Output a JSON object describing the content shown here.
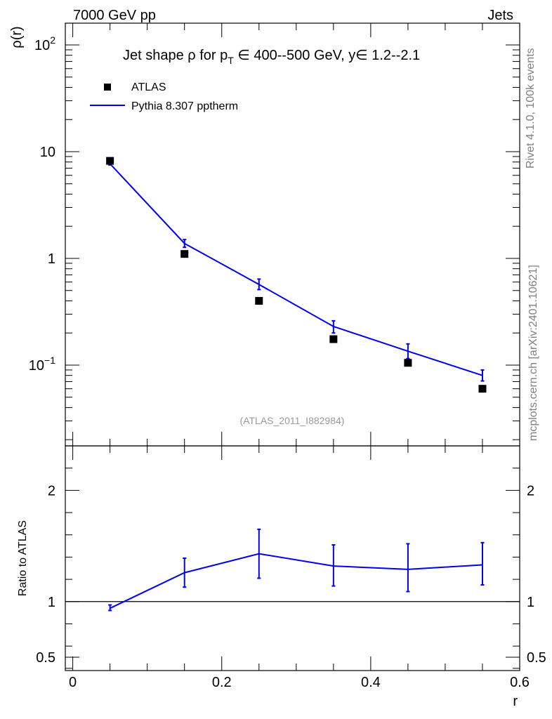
{
  "header": {
    "left": "7000 GeV pp",
    "right": "Jets"
  },
  "side_labels": {
    "rivet": "Rivet 4.1.0,  100k events",
    "mcplots": "mcplots.cern.ch [arXiv:2401.10621]"
  },
  "reference": "(ATLAS_2011_I882984)",
  "colors": {
    "mc": "#0000ee",
    "data": "#000000"
  },
  "chart_data": [
    {
      "type": "scatter",
      "panel": "main",
      "title_parts": {
        "pre": "Jet shape ",
        "rho": "ρ",
        "mid": " for p",
        "sub": "T",
        "post": " ∈ 400--500 GeV, y∈ 1.2--2.1"
      },
      "xlabel": "r",
      "ylabel": "ρ(r)",
      "yscale": "log",
      "xlim": [
        -0.01,
        0.6
      ],
      "ylim": [
        0.0175,
        160
      ],
      "yticks": [
        {
          "v": 100,
          "base": "10",
          "exp": "2"
        },
        {
          "v": 10,
          "base": "10",
          "exp": ""
        },
        {
          "v": 1,
          "base": "1",
          "exp": ""
        },
        {
          "v": 0.1,
          "base": "10",
          "exp": "−1"
        }
      ],
      "legend": {
        "data": "ATLAS",
        "mc": "Pythia 8.307 pptherm",
        "position": "top-left"
      },
      "series": [
        {
          "name": "ATLAS",
          "x": [
            0.05,
            0.15,
            0.25,
            0.35,
            0.45,
            0.55
          ],
          "y": [
            8.2,
            1.1,
            0.4,
            0.175,
            0.105,
            0.06
          ]
        },
        {
          "name": "Pythia 8.307 pptherm",
          "x": [
            0.05,
            0.15,
            0.25,
            0.35,
            0.45,
            0.55
          ],
          "y": [
            7.7,
            1.38,
            0.57,
            0.23,
            0.135,
            0.08
          ],
          "ylo": [
            7.5,
            1.27,
            0.51,
            0.2,
            0.115,
            0.071
          ],
          "yhi": [
            7.9,
            1.5,
            0.64,
            0.26,
            0.158,
            0.09
          ]
        }
      ]
    },
    {
      "type": "line",
      "panel": "ratio",
      "xlabel": "r",
      "ylabel": "Ratio to ATLAS",
      "ylim": [
        0.38,
        2.4
      ],
      "xticks": [
        {
          "v": 0,
          "label": "0"
        },
        {
          "v": 0.2,
          "label": "0.2"
        },
        {
          "v": 0.4,
          "label": "0.4"
        },
        {
          "v": 0.6,
          "label": "0.6"
        }
      ],
      "yticks_left": [
        {
          "v": 2,
          "label": "2"
        },
        {
          "v": 1,
          "label": "1"
        },
        {
          "v": 0.5,
          "label": "0.5"
        }
      ],
      "yticks_right": [
        {
          "v": 2,
          "label": "2"
        },
        {
          "v": 1,
          "label": "1"
        },
        {
          "v": 0.5,
          "label": "0.5"
        }
      ],
      "series": [
        {
          "name": "Pythia 8.307 pptherm / ATLAS",
          "x": [
            0.05,
            0.15,
            0.25,
            0.35,
            0.45,
            0.55
          ],
          "y": [
            0.94,
            1.26,
            1.43,
            1.32,
            1.29,
            1.33
          ],
          "ylo": [
            0.92,
            1.13,
            1.21,
            1.14,
            1.09,
            1.15
          ],
          "yhi": [
            0.97,
            1.39,
            1.65,
            1.51,
            1.52,
            1.53
          ]
        }
      ]
    }
  ]
}
